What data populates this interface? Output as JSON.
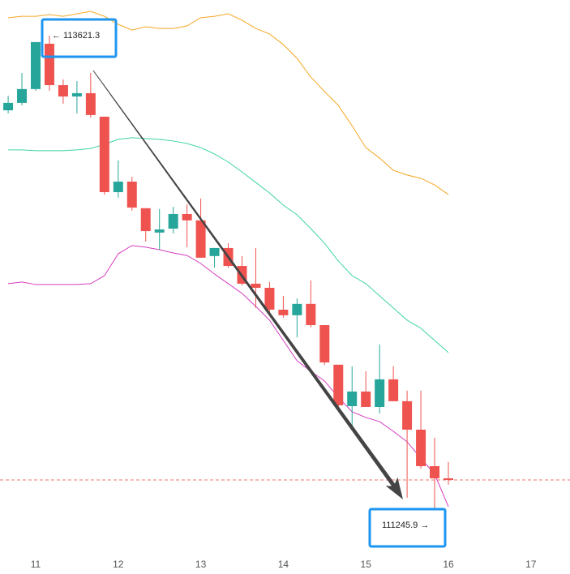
{
  "chart_data": {
    "type": "candlestick",
    "x": [
      10.6667,
      10.8333,
      11,
      11.1667,
      11.3333,
      11.5,
      11.6667,
      11.8333,
      12,
      12.1667,
      12.3333,
      12.5,
      12.6667,
      12.8333,
      13,
      13.1667,
      13.3333,
      13.5,
      13.6667,
      13.8333,
      14,
      14.1667,
      14.3333,
      14.5,
      14.6667,
      14.8333,
      15,
      15.1667,
      15.3333,
      15.5,
      15.6667,
      15.8333,
      16
    ],
    "open": [
      113259,
      113295,
      113362,
      113582,
      113381,
      113326,
      113342,
      113228,
      112862,
      112913,
      112784,
      112666,
      112685,
      112756,
      112725,
      112552,
      112591,
      112504,
      112418,
      112398,
      112292,
      112265,
      112320,
      112217,
      112025,
      111824,
      111895,
      111820,
      111954,
      111848,
      111710,
      111533,
      111474
    ],
    "high": [
      113330,
      113440,
      113590,
      113621.3,
      113409,
      113401,
      113440,
      113228,
      113016,
      112937,
      112784,
      112780,
      112791,
      112803,
      112831,
      112591,
      112614,
      112552,
      112591,
      112426,
      112359,
      112347,
      112434,
      112217,
      112025,
      112017,
      111993,
      112123,
      112017,
      111899,
      111899,
      111671,
      111553
    ],
    "low": [
      113244,
      113283,
      113354,
      113354,
      113291,
      113244,
      113224,
      112850,
      112835,
      112772,
      112622,
      112583,
      112662,
      112595,
      112544,
      112496,
      112496,
      112410,
      112300,
      112280,
      112253,
      112158,
      112206,
      112025,
      111820,
      111710,
      111820,
      111789,
      111848,
      111380,
      111521,
      111245.9,
      111443
    ],
    "close": [
      113295,
      113362,
      113590,
      113381,
      113326,
      113342,
      113236,
      112862,
      112913,
      112787,
      112673,
      112681,
      112756,
      112725,
      112544,
      112591,
      112504,
      112418,
      112398,
      112292,
      112265,
      112320,
      112217,
      112036,
      111828,
      111895,
      111820,
      111954,
      111848,
      111710,
      111533,
      111474,
      111466
    ],
    "up_color": "#26a69a",
    "down_color": "#ef5350",
    "lines": [
      {
        "color": "#f5a623",
        "values": [
          113708,
          113715,
          113715,
          113723,
          113715,
          113727,
          113739,
          113715,
          113676,
          113648,
          113664,
          113656,
          113656,
          113668,
          113708,
          113715,
          113727,
          113696,
          113656,
          113629,
          113578,
          113511,
          113420,
          113350,
          113283,
          113184,
          113078,
          113027,
          112968,
          112945,
          112929,
          112897,
          112850
        ]
      },
      {
        "color": "#3fd3a6",
        "values": [
          113067,
          113067,
          113063,
          113063,
          113063,
          113067,
          113074,
          113094,
          113118,
          113126,
          113122,
          113118,
          113110,
          113098,
          113078,
          113047,
          113008,
          112960,
          112909,
          112858,
          112799,
          112752,
          112685,
          112614,
          112528,
          112457,
          112418,
          112359,
          112300,
          112241,
          112202,
          112143,
          112084
        ]
      },
      {
        "color": "#d63cc0",
        "values": [
          112418,
          112426,
          112414,
          112414,
          112414,
          112414,
          112418,
          112457,
          112563,
          112603,
          112595,
          112583,
          112567,
          112555,
          112516,
          112465,
          112418,
          112371,
          112308,
          112241,
          112143,
          112044,
          111993,
          111946,
          111867,
          111797,
          111769,
          111749,
          111702,
          111651,
          111572,
          111494,
          111337
        ]
      }
    ],
    "xlim": [
      10.5678,
      17.4735
    ],
    "xticks": [
      11,
      12,
      13,
      14,
      15,
      16,
      17
    ],
    "ylim": [
      111120,
      113794
    ],
    "last_price_line": true,
    "annotations": [
      {
        "text": "← 113621.3"
      },
      {
        "text": "111245.9 →"
      }
    ]
  }
}
